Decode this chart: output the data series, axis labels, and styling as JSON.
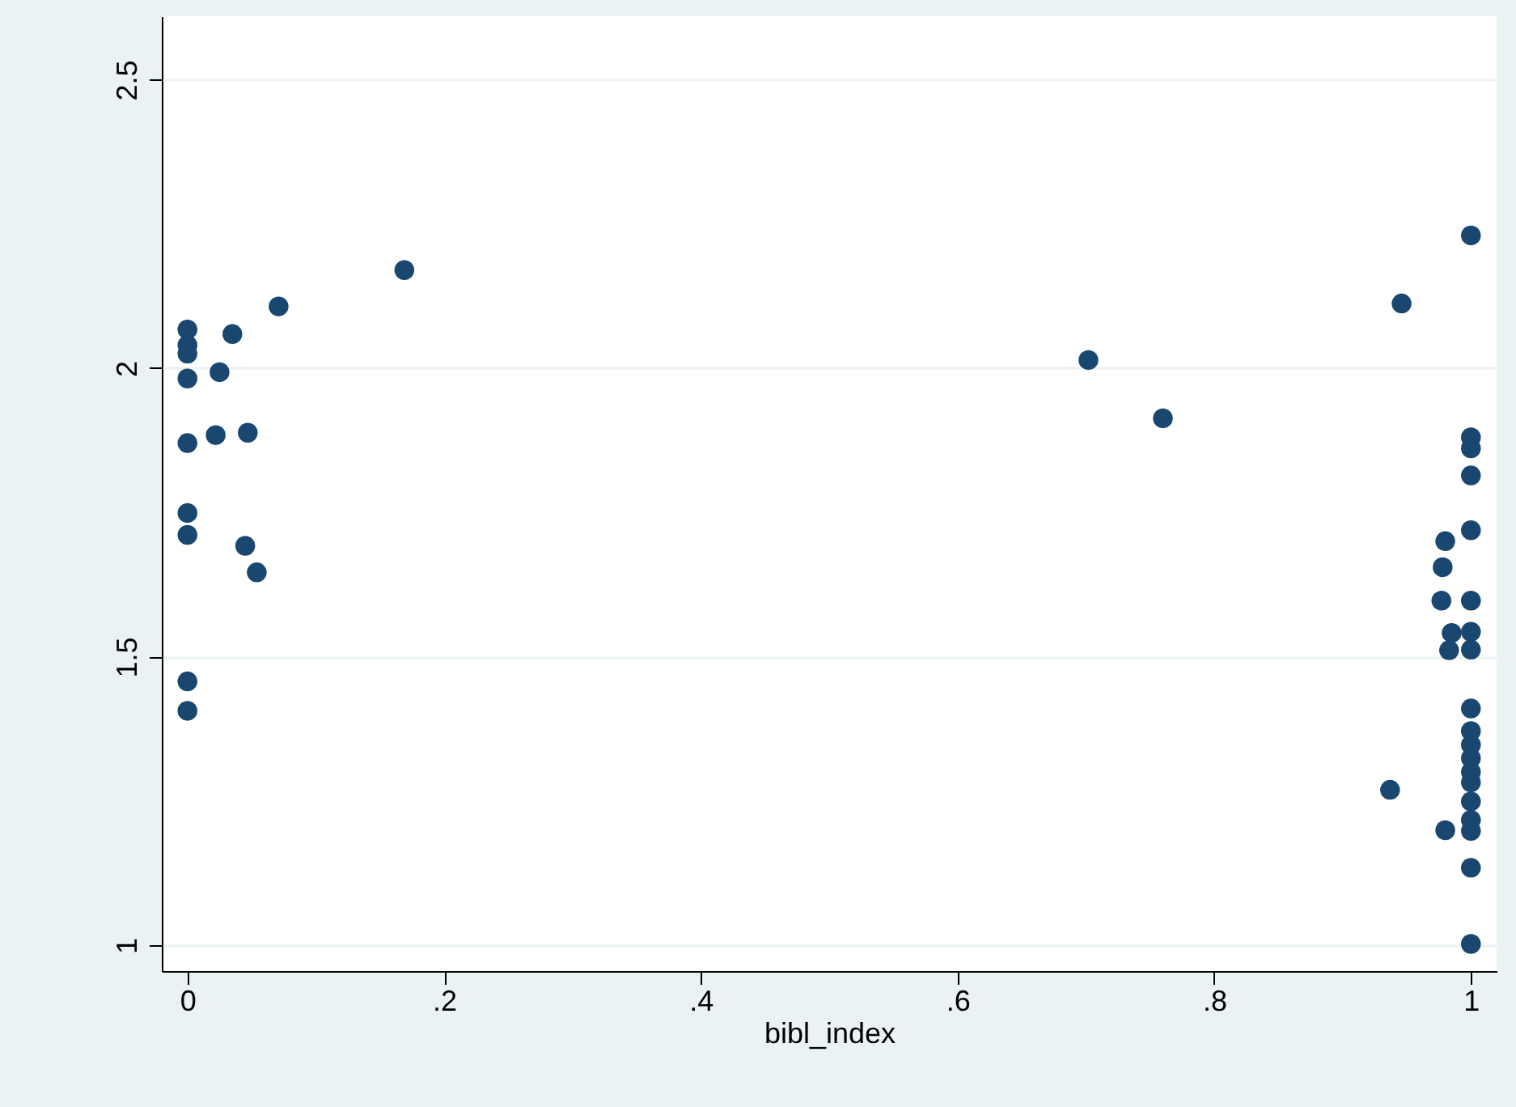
{
  "chart_data": {
    "type": "scatter",
    "xlabel": "bibl_index",
    "x": [
      0,
      0,
      0,
      0,
      0,
      0,
      0,
      0,
      0,
      0.035,
      0.025,
      0.071,
      0.169,
      0.022,
      0.047,
      0.045,
      0.054,
      0.702,
      0.76,
      0.946,
      1,
      1,
      1,
      1,
      1,
      1,
      1,
      1,
      1,
      1,
      1,
      1,
      1,
      1,
      1,
      1,
      1,
      1,
      1,
      0.98,
      0.978,
      0.977,
      0.985,
      0.983,
      0.98,
      0.937
    ],
    "values": [
      2.067,
      2.04,
      2.025,
      1.982,
      1.87,
      1.749,
      1.711,
      1.457,
      1.406,
      2.059,
      1.993,
      2.107,
      2.17,
      1.884,
      1.888,
      1.692,
      1.646,
      2.014,
      1.913,
      2.112,
      2.23,
      1.88,
      1.861,
      1.814,
      1.719,
      1.597,
      1.543,
      1.512,
      1.41,
      1.371,
      1.347,
      1.324,
      1.3,
      1.282,
      1.249,
      1.217,
      1.198,
      1.134,
      1.002,
      1.7,
      1.655,
      1.597,
      1.541,
      1.511,
      1.199,
      1.269
    ],
    "color": "#1a476f",
    "marker": "circle",
    "grid": "y",
    "xlim": [
      -0.02,
      1.02
    ],
    "ylim": [
      0.955,
      2.61
    ],
    "xticks": [
      {
        "value": 0,
        "label": "0"
      },
      {
        "value": 0.2,
        "label": ".2"
      },
      {
        "value": 0.4,
        "label": ".4"
      },
      {
        "value": 0.6,
        "label": ".6"
      },
      {
        "value": 0.8,
        "label": ".8"
      },
      {
        "value": 1,
        "label": "1"
      }
    ],
    "yticks": [
      1,
      1.5,
      2,
      2.5
    ]
  }
}
